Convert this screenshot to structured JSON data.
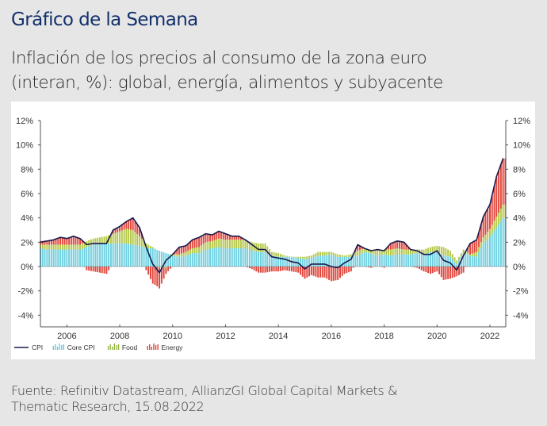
{
  "header": {
    "title": "Gráfico de la Semana",
    "subtitle_line1": "Inflación de los precios al consumo de la zona euro",
    "subtitle_line2": "(interan, %): global, energía, alimentos y subyacente"
  },
  "footer": {
    "source_line1": "Fuente: Refinitiv Datastream, AllianzGI Global Capital Markets &",
    "source_line2": "Thematic Research, 15.08.2022"
  },
  "chart_data": {
    "type": "bar",
    "title": "Inflación de los precios al consumo de la zona euro (interan, %)",
    "xlabel": "",
    "ylabel": "%",
    "ylim": [
      -5,
      12
    ],
    "xlim": [
      2005.0,
      2022.6
    ],
    "y_ticks": [
      "12%",
      "10%",
      "8%",
      "6%",
      "4%",
      "2%",
      "0%",
      "-2%",
      "-4%"
    ],
    "y_tick_values": [
      12,
      10,
      8,
      6,
      4,
      2,
      0,
      -2,
      -4
    ],
    "x_ticks": [
      "2006",
      "2008",
      "2010",
      "2012",
      "2014",
      "2016",
      "2018",
      "2020",
      "2022"
    ],
    "x_tick_values": [
      2006,
      2008,
      2010,
      2012,
      2014,
      2016,
      2018,
      2020,
      2022
    ],
    "grid": false,
    "legend_position": "bottom-left",
    "legend": [
      {
        "name": "CPI",
        "type": "line",
        "color": "#1a1a4e"
      },
      {
        "name": "Core CPI",
        "type": "bar",
        "color": "#5bc8dc"
      },
      {
        "name": "Food",
        "type": "bar",
        "color": "#8fb03a"
      },
      {
        "name": "Energy",
        "type": "bar",
        "color": "#d9372e"
      }
    ],
    "x": [
      2005.0,
      2005.25,
      2005.5,
      2005.75,
      2006.0,
      2006.25,
      2006.5,
      2006.75,
      2007.0,
      2007.25,
      2007.5,
      2007.75,
      2008.0,
      2008.25,
      2008.5,
      2008.75,
      2009.0,
      2009.25,
      2009.5,
      2009.75,
      2010.0,
      2010.25,
      2010.5,
      2010.75,
      2011.0,
      2011.25,
      2011.5,
      2011.75,
      2012.0,
      2012.25,
      2012.5,
      2012.75,
      2013.0,
      2013.25,
      2013.5,
      2013.75,
      2014.0,
      2014.25,
      2014.5,
      2014.75,
      2015.0,
      2015.25,
      2015.5,
      2015.75,
      2016.0,
      2016.25,
      2016.5,
      2016.75,
      2017.0,
      2017.25,
      2017.5,
      2017.75,
      2018.0,
      2018.25,
      2018.5,
      2018.75,
      2019.0,
      2019.25,
      2019.5,
      2019.75,
      2020.0,
      2020.25,
      2020.5,
      2020.75,
      2021.0,
      2021.25,
      2021.5,
      2021.75,
      2022.0,
      2022.25,
      2022.5
    ],
    "series": [
      {
        "name": "CPI",
        "values": [
          2.0,
          2.1,
          2.2,
          2.4,
          2.3,
          2.5,
          2.3,
          1.8,
          1.9,
          1.9,
          1.9,
          3.0,
          3.3,
          3.7,
          4.0,
          3.2,
          1.6,
          0.2,
          -0.5,
          0.5,
          1.0,
          1.6,
          1.7,
          2.2,
          2.4,
          2.7,
          2.6,
          2.9,
          2.7,
          2.5,
          2.5,
          2.2,
          1.8,
          1.4,
          1.4,
          0.8,
          0.7,
          0.6,
          0.4,
          0.3,
          -0.2,
          0.2,
          0.2,
          0.2,
          0.0,
          -0.1,
          0.3,
          0.6,
          1.8,
          1.5,
          1.3,
          1.4,
          1.3,
          1.9,
          2.1,
          2.0,
          1.4,
          1.3,
          1.0,
          1.0,
          1.3,
          0.5,
          0.3,
          -0.3,
          0.9,
          1.9,
          2.2,
          4.1,
          5.1,
          7.4,
          8.9
        ]
      },
      {
        "name": "Core CPI",
        "values": [
          1.5,
          1.4,
          1.4,
          1.4,
          1.4,
          1.4,
          1.4,
          1.6,
          1.8,
          1.9,
          1.9,
          1.9,
          1.9,
          1.9,
          1.8,
          1.7,
          1.5,
          1.5,
          1.3,
          1.1,
          0.9,
          0.8,
          0.9,
          1.1,
          1.1,
          1.4,
          1.5,
          1.6,
          1.5,
          1.5,
          1.5,
          1.5,
          1.3,
          1.2,
          1.2,
          0.9,
          0.8,
          0.8,
          0.8,
          0.7,
          0.6,
          0.7,
          0.9,
          0.9,
          1.0,
          0.8,
          0.8,
          0.8,
          0.9,
          1.2,
          1.1,
          0.9,
          1.0,
          0.9,
          1.0,
          1.0,
          1.0,
          1.1,
          1.0,
          1.2,
          1.2,
          0.9,
          0.8,
          0.2,
          1.1,
          0.9,
          0.8,
          1.9,
          2.5,
          3.2,
          4.0
        ]
      },
      {
        "name": "Food",
        "values": [
          0.3,
          0.4,
          0.4,
          0.4,
          0.4,
          0.4,
          0.4,
          0.5,
          0.5,
          0.5,
          0.6,
          0.8,
          1.0,
          1.2,
          1.2,
          0.8,
          0.4,
          0.1,
          -0.1,
          -0.1,
          0.1,
          0.2,
          0.3,
          0.4,
          0.5,
          0.6,
          0.6,
          0.7,
          0.7,
          0.7,
          0.7,
          0.7,
          0.7,
          0.7,
          0.7,
          0.3,
          0.3,
          0.1,
          0.0,
          0.1,
          0.2,
          0.2,
          0.3,
          0.3,
          0.2,
          0.2,
          0.1,
          0.2,
          0.4,
          0.3,
          0.3,
          0.4,
          0.4,
          0.5,
          0.5,
          0.4,
          0.4,
          0.3,
          0.4,
          0.4,
          0.5,
          0.7,
          0.5,
          0.3,
          0.3,
          0.1,
          0.4,
          0.5,
          0.6,
          0.9,
          1.1
        ]
      },
      {
        "name": "Energy",
        "values": [
          0.3,
          0.3,
          0.4,
          0.6,
          0.5,
          0.7,
          0.5,
          -0.3,
          -0.4,
          -0.5,
          -0.6,
          0.3,
          0.4,
          0.6,
          1.0,
          0.7,
          -0.3,
          -1.4,
          -1.7,
          -0.5,
          0.0,
          0.6,
          0.5,
          0.7,
          0.8,
          0.7,
          0.5,
          0.6,
          0.5,
          0.3,
          0.3,
          0.0,
          -0.2,
          -0.5,
          -0.5,
          -0.4,
          -0.4,
          -0.3,
          -0.4,
          -0.5,
          -1.0,
          -0.7,
          -0.9,
          -0.9,
          -1.2,
          -1.1,
          -0.6,
          -0.4,
          0.5,
          0.0,
          -0.1,
          0.1,
          -0.1,
          0.5,
          0.6,
          0.6,
          0.0,
          -0.1,
          -0.4,
          -0.6,
          -0.4,
          -1.1,
          -1.0,
          -0.8,
          -0.5,
          0.9,
          1.0,
          1.7,
          2.0,
          3.3,
          3.8
        ]
      }
    ]
  }
}
